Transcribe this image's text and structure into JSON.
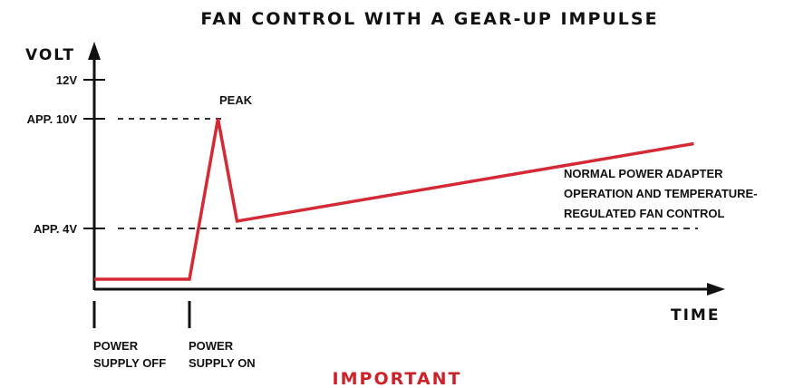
{
  "chart_data": {
    "type": "line",
    "title": "FAN CONTROL WITH A GEAR-UP IMPULSE",
    "ylabel": "VOLT",
    "xlabel": "TIME",
    "y_ticks": [
      {
        "value": 12,
        "label": "12V"
      },
      {
        "value": 10,
        "label": "APP. 10V"
      },
      {
        "value": 4,
        "label": "APP. 4V"
      }
    ],
    "ylim": [
      0,
      12
    ],
    "reference_lines": [
      {
        "value": 10,
        "style": "dashed"
      },
      {
        "value": 4,
        "style": "dashed"
      }
    ],
    "x_markers": [
      {
        "x": 0,
        "label_lines": [
          "POWER",
          "SUPPLY OFF"
        ]
      },
      {
        "x": 10,
        "label_lines": [
          "POWER",
          "SUPPLY ON"
        ]
      }
    ],
    "series": [
      {
        "color": "#d42a35",
        "points": [
          [
            0,
            0
          ],
          [
            10,
            0
          ],
          [
            13,
            10
          ],
          [
            15,
            3.6
          ],
          [
            63,
            8.4
          ]
        ]
      }
    ],
    "annotations": [
      {
        "text_lines": [
          "PEAK"
        ]
      },
      {
        "text_lines": [
          "NORMAL POWER ADAPTER",
          "OPERATION AND TEMPERATURE-",
          "REGULATED FAN CONTROL"
        ]
      }
    ],
    "footer": "IMPORTANT",
    "footer_color": "#cc2229",
    "grid": false
  }
}
